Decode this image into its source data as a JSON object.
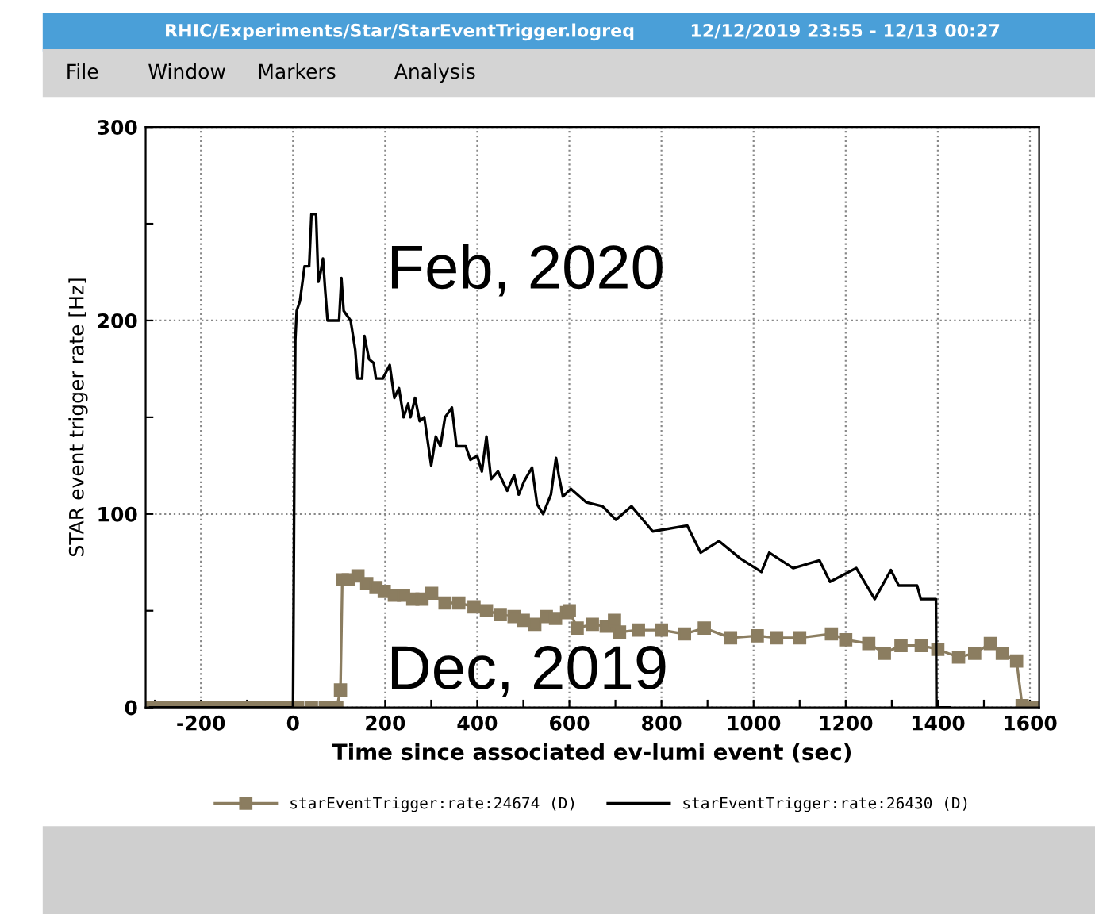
{
  "chart_data": {
    "type": "line",
    "title": "RHIC/Experiments/Star/StarEventTrigger.logreq",
    "subtitle": "12/12/2019 23:55 - 12/13 00:27",
    "annotations": [
      "File",
      "Window",
      "Markers",
      "Analysis",
      "Feb, 2020",
      "Dec, 2019"
    ],
    "xlabel": "Time since associated ev-lumi event (sec)",
    "ylabel": "STAR event trigger rate [Hz]",
    "xlim": [
      -320,
      1620
    ],
    "ylim": [
      0,
      300
    ],
    "xticks": [
      {
        "value": -300,
        "label": null
      },
      -200,
      {
        "value": -100,
        "label": null
      },
      0,
      {
        "value": 100,
        "label": null
      },
      200,
      {
        "value": 300,
        "label": null
      },
      400,
      {
        "value": 500,
        "label": null
      },
      600,
      {
        "value": 700,
        "label": null
      },
      800,
      {
        "value": 900,
        "label": null
      },
      1000,
      {
        "value": 1100,
        "label": null
      },
      1200,
      {
        "value": 1300,
        "label": null
      },
      1400,
      {
        "value": 1500,
        "label": null
      },
      1600
    ],
    "yticks": [
      0,
      {
        "value": 50,
        "label": null
      },
      100,
      {
        "value": 150,
        "label": null
      },
      200,
      {
        "value": 250,
        "label": null
      },
      300
    ],
    "grid": true,
    "legend": "bottom",
    "series": [
      {
        "name": "starEventTrigger:rate:24674 (D)",
        "color": "#8b7d60",
        "marker": "square",
        "x": [
          -310,
          -290,
          -270,
          -250,
          -230,
          -210,
          -190,
          -170,
          -150,
          -130,
          -110,
          -90,
          -70,
          -50,
          -30,
          -10,
          10,
          40,
          70,
          95,
          103,
          107,
          120,
          141,
          160,
          180,
          198,
          220,
          240,
          260,
          280,
          301,
          330,
          360,
          393,
          420,
          450,
          480,
          500,
          525,
          550,
          570,
          594,
          600,
          617,
          650,
          680,
          698,
          709,
          750,
          800,
          850,
          893,
          950,
          1008,
          1050,
          1100,
          1169,
          1200,
          1250,
          1284,
          1320,
          1364,
          1400,
          1445,
          1480,
          1514,
          1540,
          1571,
          1583,
          1600,
          1615
        ],
        "values": [
          0,
          0,
          0,
          0,
          0,
          0,
          0,
          0,
          0,
          0,
          0,
          0,
          0,
          0,
          0,
          0,
          0,
          0,
          0,
          0,
          9,
          66,
          66,
          68,
          64,
          62,
          60,
          58,
          58,
          56,
          56,
          59,
          54,
          54,
          52,
          50,
          48,
          47,
          45,
          43,
          47,
          46,
          49,
          50,
          41,
          43,
          42,
          45,
          39,
          40,
          40,
          38,
          41,
          36,
          37,
          36,
          36,
          38,
          35,
          33,
          28,
          32,
          32,
          30,
          26,
          28,
          33,
          28,
          24,
          1,
          0,
          0
        ]
      },
      {
        "name": "starEventTrigger:rate:26430 (D)",
        "color": "#000000",
        "marker": "none",
        "x": [
          -310,
          0,
          3,
          5,
          8,
          15,
          25,
          35,
          40,
          50,
          55,
          60,
          65,
          70,
          75,
          100,
          105,
          110,
          125,
          135,
          140,
          150,
          155,
          165,
          175,
          180,
          195,
          210,
          220,
          230,
          240,
          250,
          255,
          265,
          275,
          285,
          300,
          310,
          320,
          330,
          345,
          355,
          375,
          385,
          400,
          410,
          420,
          430,
          445,
          465,
          480,
          490,
          502,
          519,
          530,
          543,
          560,
          571,
          577,
          586,
          603,
          637,
          672,
          701,
          735,
          781,
          856,
          885,
          925,
          971,
          1017,
          1034,
          1086,
          1143,
          1166,
          1223,
          1263,
          1298,
          1315,
          1355,
          1363,
          1396,
          1397,
          1425
        ],
        "values": [
          0,
          0,
          130,
          190,
          205,
          210,
          228,
          228,
          255,
          255,
          220,
          225,
          232,
          215,
          200,
          200,
          222,
          205,
          200,
          185,
          170,
          170,
          192,
          180,
          178,
          170,
          170,
          177,
          160,
          165,
          150,
          157,
          150,
          160,
          148,
          150,
          125,
          140,
          135,
          150,
          155,
          135,
          135,
          128,
          130,
          122,
          140,
          118,
          122,
          112,
          120,
          110,
          117,
          124,
          105,
          100,
          110,
          129,
          120,
          109,
          113,
          106,
          104,
          97,
          104,
          91,
          94,
          80,
          86,
          77,
          70,
          80,
          72,
          76,
          65,
          72,
          56,
          71,
          63,
          63,
          56,
          56,
          0,
          0
        ]
      }
    ]
  }
}
